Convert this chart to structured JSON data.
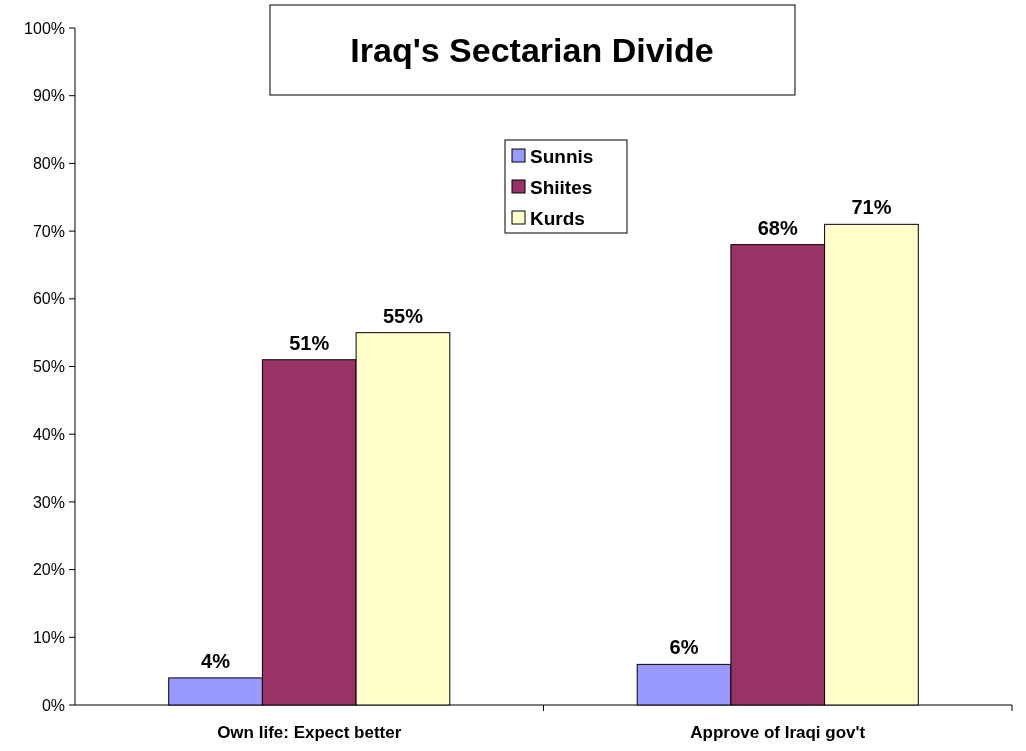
{
  "chart_data": {
    "type": "bar",
    "title": "Iraq's Sectarian Divide",
    "categories": [
      "Own life: Expect better",
      "Approve of Iraqi gov't"
    ],
    "series": [
      {
        "name": "Sunnis",
        "color": "#9999ff",
        "values": [
          4,
          6
        ],
        "value_labels": [
          "4%",
          "6%"
        ]
      },
      {
        "name": "Shiites",
        "color": "#993366",
        "values": [
          51,
          68
        ],
        "value_labels": [
          "51%",
          "68%"
        ]
      },
      {
        "name": "Kurds",
        "color": "#ffffcc",
        "values": [
          55,
          71
        ],
        "value_labels": [
          "55%",
          "71%"
        ]
      }
    ],
    "ylim": [
      0,
      100
    ],
    "yticks": [
      {
        "value": 0,
        "label": "0%"
      },
      {
        "value": 10,
        "label": "10%"
      },
      {
        "value": 20,
        "label": "20%"
      },
      {
        "value": 30,
        "label": "30%"
      },
      {
        "value": 40,
        "label": "40%"
      },
      {
        "value": 50,
        "label": "50%"
      },
      {
        "value": 60,
        "label": "60%"
      },
      {
        "value": 70,
        "label": "70%"
      },
      {
        "value": 80,
        "label": "80%"
      },
      {
        "value": 90,
        "label": "90%"
      },
      {
        "value": 100,
        "label": "100%"
      }
    ],
    "grid": false,
    "legend": "top"
  }
}
